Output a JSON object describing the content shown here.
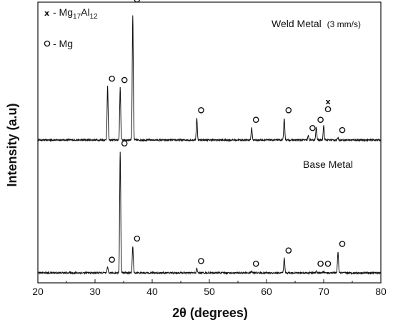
{
  "chart_data": {
    "type": "line",
    "title": "",
    "xlabel": "2θ (degrees)",
    "ylabel": "Intensity (a.u)",
    "xlim": [
      20,
      80
    ],
    "xticks": [
      "20",
      "30",
      "40",
      "50",
      "60",
      "70",
      "80"
    ],
    "yticks_shown": false,
    "grid": false,
    "legend": {
      "placement": "top-left",
      "entries": [
        {
          "symbol": "x",
          "label_parts": [
            "- Mg",
            "17",
            "Al",
            "12"
          ]
        },
        {
          "symbol": "o",
          "label": "- Mg"
        }
      ]
    },
    "series": [
      {
        "name": "Weld Metal",
        "label_suffix": "(3 mm/s)",
        "baseline": 0.0,
        "peaks": [
          {
            "x": 32.2,
            "y": 0.39
          },
          {
            "x": 34.4,
            "y": 0.38
          },
          {
            "x": 36.6,
            "y": 0.91
          },
          {
            "x": 47.8,
            "y": 0.16
          },
          {
            "x": 57.4,
            "y": 0.09
          },
          {
            "x": 63.1,
            "y": 0.16
          },
          {
            "x": 67.3,
            "y": 0.03
          },
          {
            "x": 68.7,
            "y": 0.09
          },
          {
            "x": 70.0,
            "y": 0.11
          },
          {
            "x": 72.5,
            "y": 0.015
          }
        ],
        "markers": [
          {
            "x": 32.2,
            "symbol": "o"
          },
          {
            "x": 34.4,
            "symbol": "o"
          },
          {
            "x": 36.6,
            "symbol": "x"
          },
          {
            "x": 36.6,
            "symbol": "o"
          },
          {
            "x": 47.8,
            "symbol": "o"
          },
          {
            "x": 57.4,
            "symbol": "o"
          },
          {
            "x": 63.1,
            "symbol": "o"
          },
          {
            "x": 67.3,
            "symbol": "o"
          },
          {
            "x": 68.7,
            "symbol": "o"
          },
          {
            "x": 70.0,
            "symbol": "x"
          },
          {
            "x": 70.0,
            "symbol": "o"
          },
          {
            "x": 72.5,
            "symbol": "o"
          }
        ]
      },
      {
        "name": "Base Metal",
        "baseline": 0.0,
        "peaks": [
          {
            "x": 32.2,
            "y": 0.04
          },
          {
            "x": 34.4,
            "y": 0.92
          },
          {
            "x": 36.6,
            "y": 0.2
          },
          {
            "x": 47.8,
            "y": 0.03
          },
          {
            "x": 57.4,
            "y": 0.01
          },
          {
            "x": 63.1,
            "y": 0.11
          },
          {
            "x": 68.7,
            "y": 0.01
          },
          {
            "x": 70.0,
            "y": 0.01
          },
          {
            "x": 72.5,
            "y": 0.16
          }
        ],
        "markers": [
          {
            "x": 32.2,
            "symbol": "o"
          },
          {
            "x": 34.4,
            "symbol": "o"
          },
          {
            "x": 36.6,
            "symbol": "o"
          },
          {
            "x": 47.8,
            "symbol": "o"
          },
          {
            "x": 57.4,
            "symbol": "o"
          },
          {
            "x": 63.1,
            "symbol": "o"
          },
          {
            "x": 68.7,
            "symbol": "o"
          },
          {
            "x": 70.0,
            "symbol": "o"
          },
          {
            "x": 72.5,
            "symbol": "o"
          }
        ]
      }
    ],
    "colors": {
      "line": "#111111",
      "axis": "#111111",
      "background": "#ffffff"
    }
  }
}
